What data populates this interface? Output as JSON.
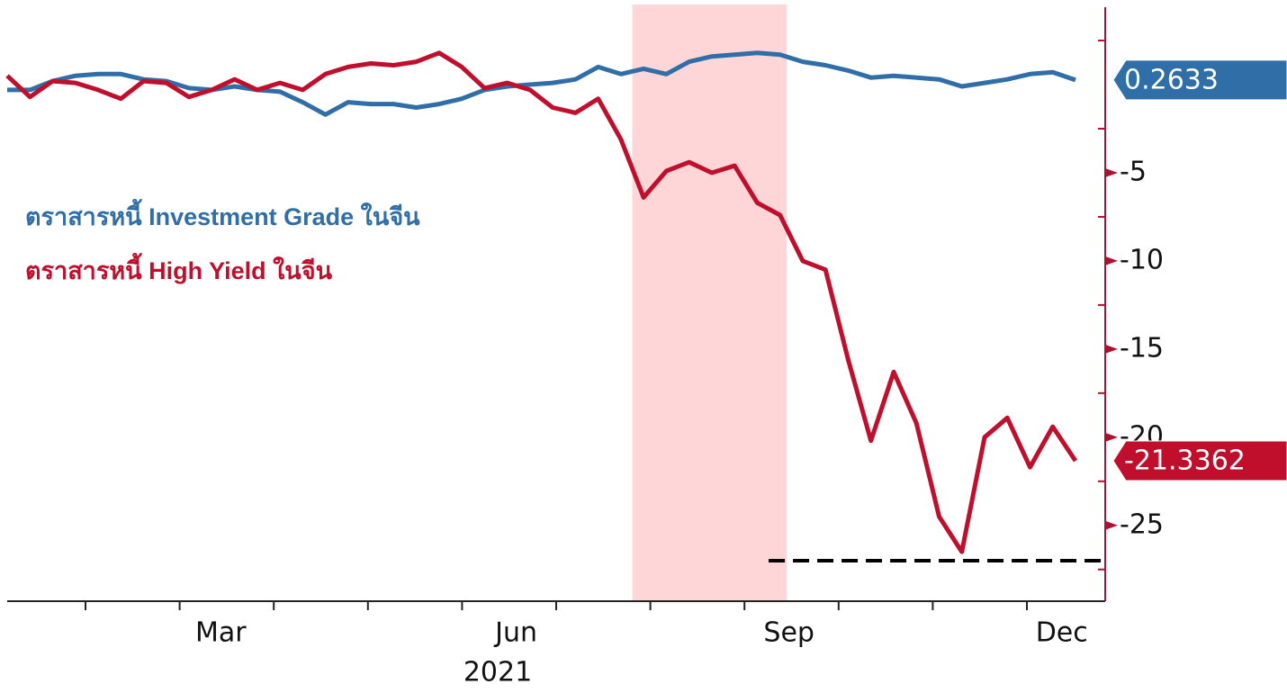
{
  "chart_data": {
    "type": "line",
    "categories": [
      null,
      null,
      null,
      null,
      null,
      null,
      null,
      null,
      null,
      "Mar",
      null,
      null,
      null,
      null,
      null,
      null,
      null,
      null,
      null,
      null,
      null,
      null,
      "Jun",
      null,
      null,
      null,
      null,
      null,
      null,
      null,
      null,
      null,
      null,
      null,
      "Sep",
      null,
      null,
      null,
      null,
      null,
      null,
      null,
      null,
      null,
      null,
      null,
      "Dec",
      null
    ],
    "xlabel": "2021",
    "series": [
      {
        "name": "ตราสารหนี้ Investment Grade ในจีน",
        "color": "#2f6ea6",
        "values": [
          -0.3,
          -0.3,
          0.2,
          0.5,
          0.6,
          0.6,
          0.3,
          0.2,
          -0.2,
          -0.3,
          -0.1,
          -0.3,
          -0.4,
          -1.0,
          -1.7,
          -1.0,
          -1.1,
          -1.1,
          -1.3,
          -1.1,
          -0.8,
          -0.3,
          -0.1,
          0.0,
          0.1,
          0.3,
          1.0,
          0.6,
          0.9,
          0.6,
          1.3,
          1.6,
          1.7,
          1.8,
          1.7,
          1.3,
          1.1,
          0.8,
          0.4,
          0.5,
          0.4,
          0.3,
          -0.1,
          0.1,
          0.3,
          0.6,
          0.7,
          0.2633
        ]
      },
      {
        "name": "ตราสารหนี้ High Yield ในจีน",
        "color": "#c00f2c",
        "values": [
          0.5,
          -0.7,
          0.2,
          0.1,
          -0.3,
          -0.8,
          0.2,
          0.1,
          -0.7,
          -0.3,
          0.3,
          -0.3,
          0.1,
          -0.3,
          0.6,
          1.0,
          1.2,
          1.1,
          1.3,
          1.8,
          1.0,
          -0.2,
          0.1,
          -0.3,
          -1.3,
          -1.6,
          -0.8,
          -3.1,
          -6.4,
          -4.9,
          -4.4,
          -5.0,
          -4.6,
          -6.7,
          -7.4,
          -10.0,
          -10.5,
          -15.6,
          -20.2,
          -16.3,
          -19.2,
          -24.5,
          -26.5,
          -20.0,
          -18.9,
          -21.7,
          -19.4,
          -21.3362
        ]
      }
    ],
    "ylim": [
      -29.3,
      4.8
    ],
    "yticks": [
      -5,
      -10,
      -15,
      -20,
      -25
    ],
    "shaded_range": [
      27.5,
      34.3
    ],
    "shade_color": "#ffd6d8",
    "reference_line": {
      "value": -27,
      "from": 33.5
    }
  }
}
